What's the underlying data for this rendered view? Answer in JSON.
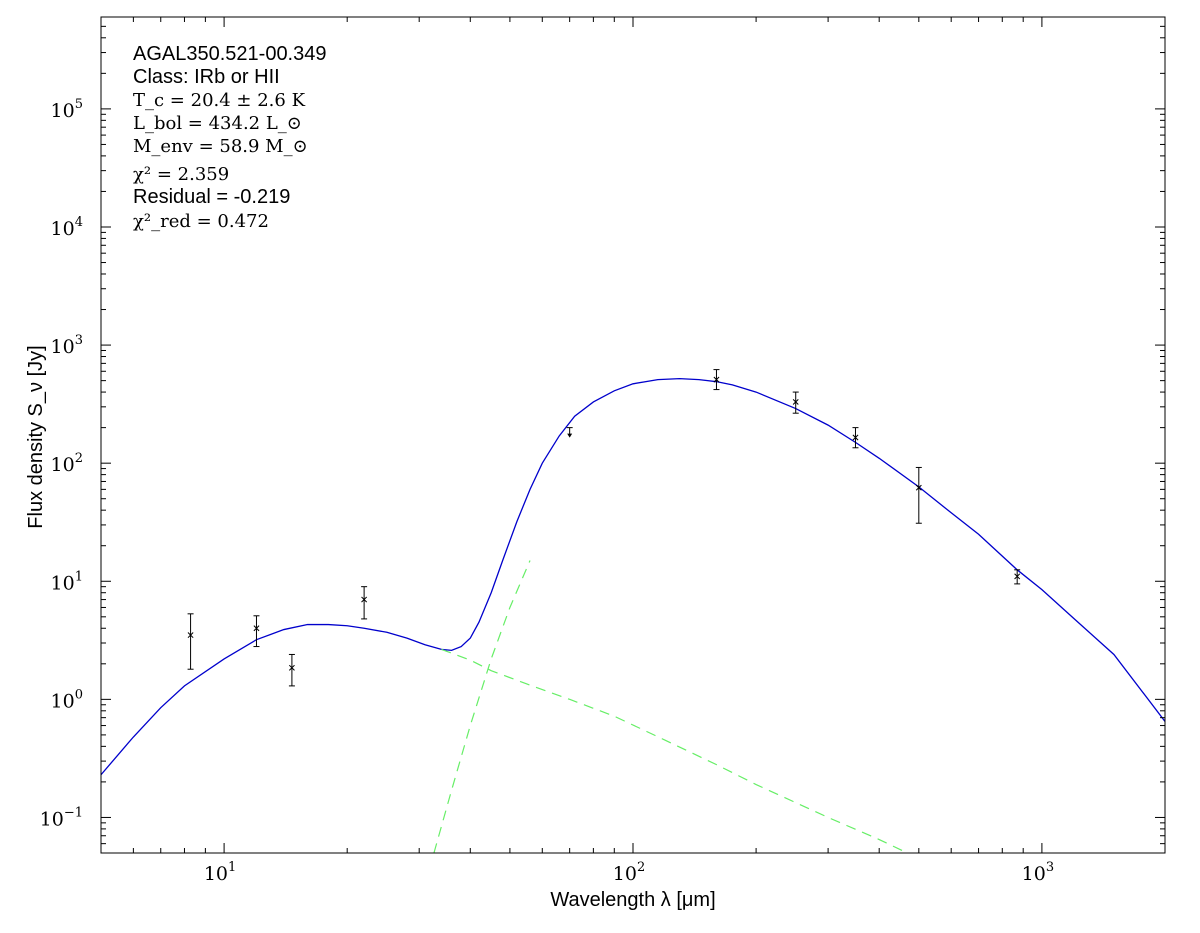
{
  "chart_data": {
    "type": "line",
    "title": "",
    "xlabel": "Wavelength λ [μm]",
    "ylabel": "Flux density S_ν [Jy]",
    "xscale": "log",
    "yscale": "log",
    "xlim": [
      5,
      2000
    ],
    "ylim": [
      0.05,
      600000
    ],
    "grid": false,
    "x_ticks": [
      {
        "base": "10",
        "exp": "1",
        "value": 10
      },
      {
        "base": "10",
        "exp": "2",
        "value": 100
      },
      {
        "base": "10",
        "exp": "3",
        "value": 1000
      }
    ],
    "y_ticks": [
      {
        "base": "10",
        "exp": "−1",
        "value": 0.1
      },
      {
        "base": "10",
        "exp": "0",
        "value": 1
      },
      {
        "base": "10",
        "exp": "1",
        "value": 10
      },
      {
        "base": "10",
        "exp": "2",
        "value": 100
      },
      {
        "base": "10",
        "exp": "3",
        "value": 1000
      },
      {
        "base": "10",
        "exp": "4",
        "value": 10000
      },
      {
        "base": "10",
        "exp": "5",
        "value": 100000
      }
    ],
    "annotations": {
      "source": "AGAL350.521-00.349",
      "class_line": "Class: IRb or HII",
      "tc": "T_c = 20.4 ± 2.6 K",
      "lbol": "L_bol = 434.2 L_⊙",
      "menv": "M_env = 58.9 M_⊙",
      "chi2": "χ² = 2.359",
      "residual": "Residual = -0.219",
      "chi2red": "χ²_red = 0.472"
    },
    "series": [
      {
        "kind": "model-total",
        "color": "#0000cc",
        "x": [
          5,
          6,
          7,
          8,
          10,
          12,
          14,
          16,
          18,
          20,
          22,
          25,
          28,
          31,
          34,
          36,
          38,
          40,
          42,
          45,
          48,
          52,
          56,
          60,
          66,
          72,
          80,
          90,
          100,
          115,
          130,
          145,
          160,
          175,
          200,
          250,
          300,
          350,
          400,
          500,
          600,
          700,
          870,
          1000,
          1200,
          1500,
          2000
        ],
        "y": [
          0.23,
          0.48,
          0.85,
          1.3,
          2.2,
          3.2,
          3.9,
          4.3,
          4.3,
          4.2,
          4.0,
          3.7,
          3.3,
          2.9,
          2.65,
          2.6,
          2.8,
          3.3,
          4.5,
          8,
          15,
          32,
          60,
          100,
          170,
          250,
          330,
          410,
          470,
          510,
          520,
          510,
          490,
          460,
          400,
          290,
          210,
          150,
          110,
          63,
          38,
          25,
          12.5,
          8.5,
          4.8,
          2.4,
          0.65
        ]
      },
      {
        "kind": "model-warm",
        "color": "#66ee66",
        "dashed": true,
        "x": [
          34,
          40,
          45,
          55,
          70,
          90,
          120,
          160,
          200,
          300,
          400,
          500
        ],
        "y": [
          2.65,
          2.15,
          1.75,
          1.35,
          1.0,
          0.72,
          0.45,
          0.28,
          0.19,
          0.1,
          0.065,
          0.045
        ]
      },
      {
        "kind": "model-cold",
        "color": "#66ee66",
        "dashed": true,
        "x": [
          32.6,
          36,
          40,
          45,
          50,
          56
        ],
        "y": [
          0.05,
          0.17,
          0.6,
          2.2,
          6,
          15
        ]
      }
    ],
    "points": [
      {
        "x": 8.28,
        "y": 3.5,
        "err_lo": 1.8,
        "err_hi": 5.3
      },
      {
        "x": 12,
        "y": 4.0,
        "err_lo": 2.8,
        "err_hi": 5.1
      },
      {
        "x": 14.65,
        "y": 1.85,
        "err_lo": 1.3,
        "err_hi": 2.4
      },
      {
        "x": 22,
        "y": 7.0,
        "err_lo": 4.8,
        "err_hi": 9.0
      },
      {
        "x": 160,
        "y": 510,
        "err_lo": 420,
        "err_hi": 620
      },
      {
        "x": 250,
        "y": 330,
        "err_lo": 265,
        "err_hi": 400
      },
      {
        "x": 350,
        "y": 165,
        "err_lo": 135,
        "err_hi": 200
      },
      {
        "x": 500,
        "y": 62,
        "err_lo": 31,
        "err_hi": 92
      },
      {
        "x": 870,
        "y": 11,
        "err_lo": 9.5,
        "err_hi": 12.5
      }
    ],
    "upper_limits": [
      {
        "x": 70,
        "y": 185
      }
    ]
  }
}
